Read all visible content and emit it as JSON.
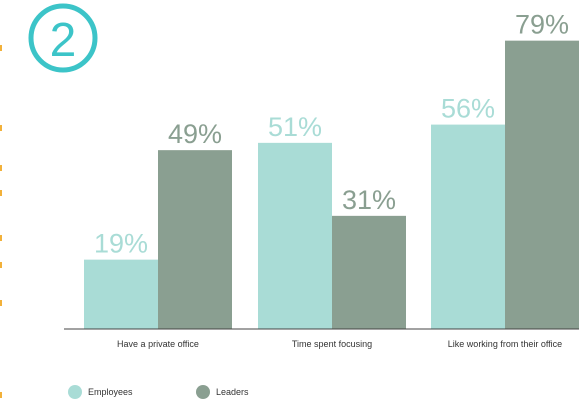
{
  "badge": {
    "number": "2",
    "color": "#3cc4c8"
  },
  "colors": {
    "employees": "#a9dcd6",
    "leaders": "#8a9f91",
    "accent_dots": "#f2b13a"
  },
  "chart_data": {
    "type": "bar",
    "categories": [
      "Have a private office",
      "Time spent focusing",
      "Like working from their office"
    ],
    "series": [
      {
        "name": "Employees",
        "values": [
          19,
          51,
          56
        ],
        "labels": [
          "19%",
          "51%",
          "56%"
        ],
        "color": "#a9dcd6"
      },
      {
        "name": "Leaders",
        "values": [
          49,
          31,
          79
        ],
        "labels": [
          "49%",
          "31%",
          "79%"
        ],
        "color": "#8a9f91"
      }
    ],
    "ylim": [
      0,
      80
    ],
    "grid": false,
    "legend_position": "bottom-left"
  }
}
